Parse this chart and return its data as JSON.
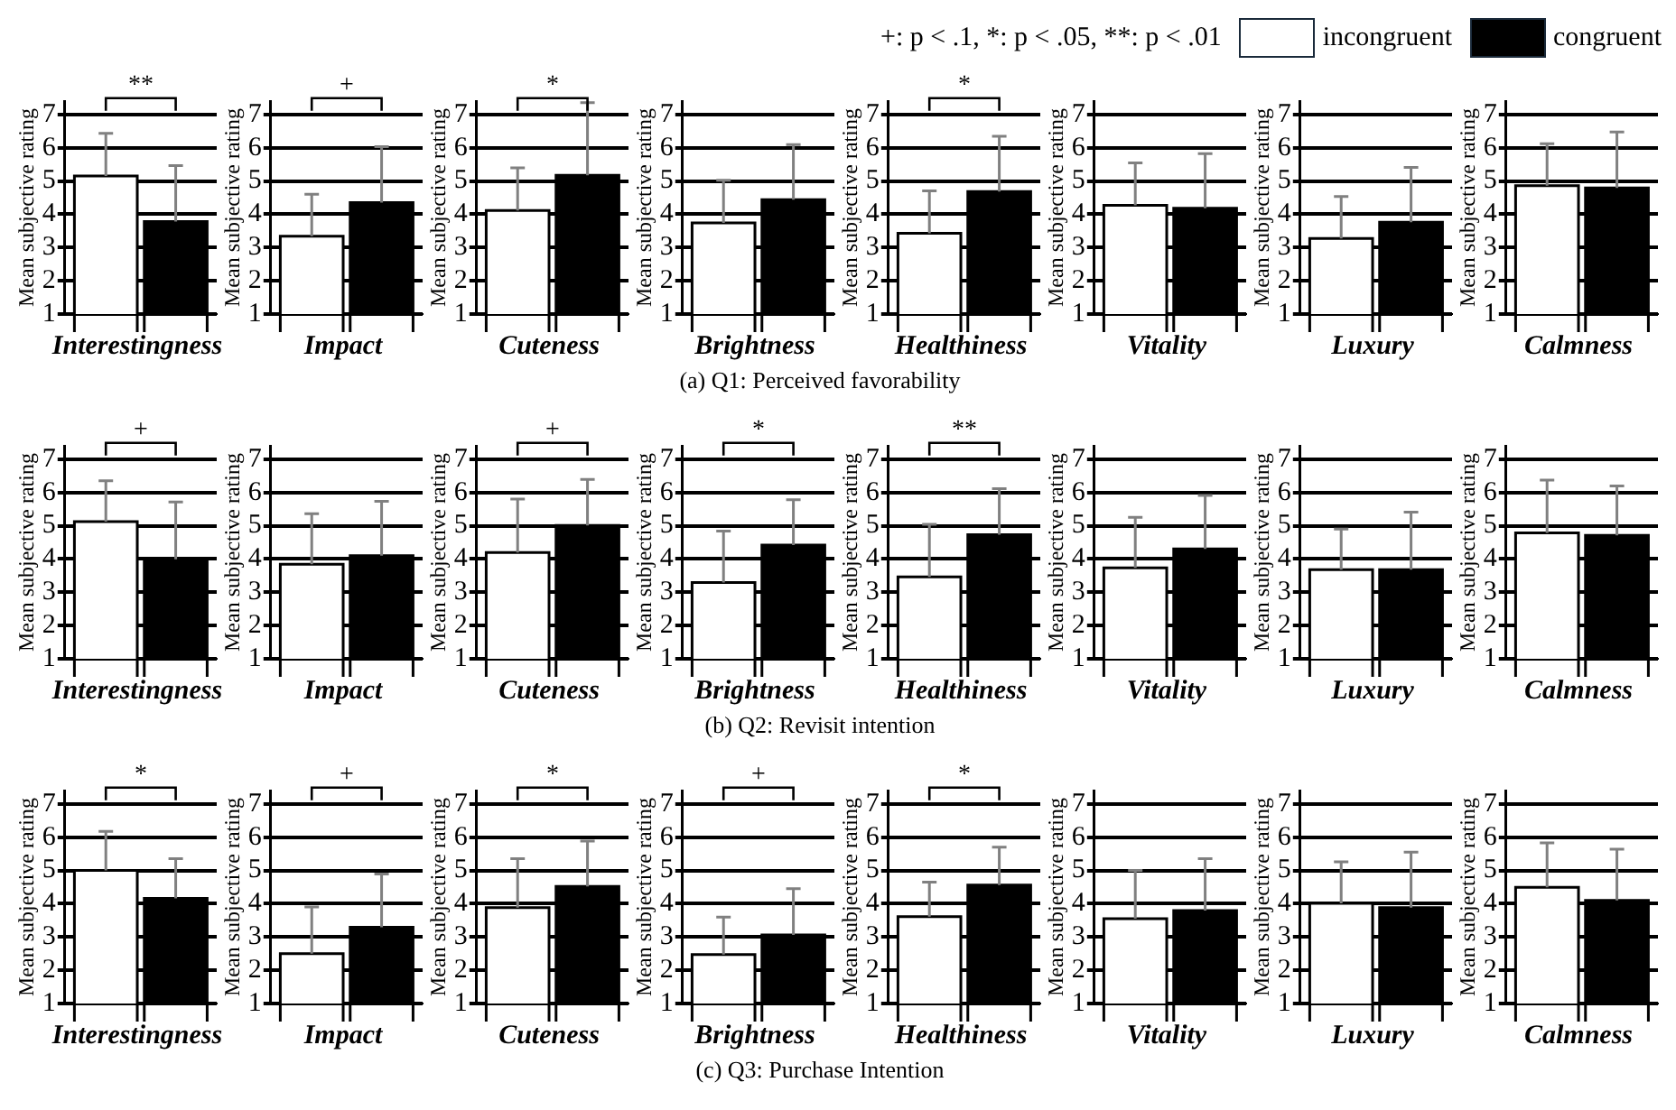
{
  "chart_data": [
    {
      "type": "bar",
      "legend": "top right",
      "legend_title": "+: p < .1, *: p < .05, **: p < .01",
      "xlabel": "Interestingness",
      "ylabel": "Mean subjective rating",
      "categories": [
        null
      ],
      "ylim": [
        1,
        7.4
      ],
      "yticks": [
        1,
        2,
        3,
        4,
        5,
        6,
        7
      ],
      "grid": "y",
      "annotations": [
        "**"
      ],
      "series": [
        {
          "name": "incongruent",
          "color": "#ffffff",
          "values": [
            5.15
          ],
          "errors": [
            [
              5.15,
              6.43
            ]
          ]
        },
        {
          "name": "congruent",
          "color": "#000000",
          "values": [
            3.78
          ],
          "errors": [
            [
              3.78,
              5.46
            ]
          ]
        }
      ]
    },
    {
      "type": "bar",
      "xlabel": "Impact",
      "ylabel": "Mean subjective rating",
      "categories": [
        null
      ],
      "ylim": [
        1,
        7.4
      ],
      "yticks": [
        1,
        2,
        3,
        4,
        5,
        6,
        7
      ],
      "grid": "y",
      "annotations": [
        "+"
      ],
      "series": [
        {
          "color": "#ffffff",
          "values": [
            3.34
          ],
          "errors": [
            [
              3.34,
              4.6
            ]
          ]
        },
        {
          "color": "#000000",
          "values": [
            4.35
          ],
          "errors": [
            [
              4.35,
              6.03
            ]
          ]
        }
      ]
    },
    {
      "type": "bar",
      "xlabel": "Cuteness",
      "ylabel": "Mean subjective rating",
      "categories": [
        null
      ],
      "ylim": [
        1,
        7.4
      ],
      "yticks": [
        1,
        2,
        3,
        4,
        5,
        6,
        7
      ],
      "grid": "y",
      "annotations": [
        "*"
      ],
      "series": [
        {
          "color": "#ffffff",
          "values": [
            4.11
          ],
          "errors": [
            [
              4.11,
              5.39
            ]
          ]
        },
        {
          "color": "#000000",
          "values": [
            5.17
          ],
          "errors": [
            [
              5.17,
              7.35
            ]
          ]
        }
      ]
    },
    {
      "type": "bar",
      "title": "(a) Q1: Perceived favorability",
      "xlabel": "Brightness",
      "ylabel": "Mean subjective rating",
      "categories": [
        null
      ],
      "ylim": [
        1,
        7.4
      ],
      "yticks": [
        1,
        2,
        3,
        4,
        5,
        6,
        7
      ],
      "grid": "y",
      "series": [
        {
          "color": "#ffffff",
          "values": [
            3.74
          ],
          "errors": [
            [
              3.74,
              5.02
            ]
          ]
        },
        {
          "color": "#000000",
          "values": [
            4.44
          ],
          "errors": [
            [
              4.44,
              6.09
            ]
          ]
        }
      ]
    },
    {
      "type": "bar",
      "xlabel": "Healthiness",
      "ylabel": "Mean subjective rating",
      "categories": [
        null
      ],
      "ylim": [
        1,
        7.4
      ],
      "yticks": [
        1,
        2,
        3,
        4,
        5,
        6,
        7
      ],
      "grid": "y",
      "annotations": [
        "*"
      ],
      "series": [
        {
          "color": "#ffffff",
          "values": [
            3.43
          ],
          "errors": [
            [
              3.43,
              4.7
            ]
          ]
        },
        {
          "color": "#000000",
          "values": [
            4.68
          ],
          "errors": [
            [
              4.68,
              6.34
            ]
          ]
        }
      ]
    },
    {
      "type": "bar",
      "xlabel": "Vitality",
      "ylabel": "Mean subjective rating",
      "categories": [
        null
      ],
      "ylim": [
        1,
        7.4
      ],
      "yticks": [
        1,
        2,
        3,
        4,
        5,
        6,
        7
      ],
      "grid": "y",
      "series": [
        {
          "color": "#ffffff",
          "values": [
            4.27
          ],
          "errors": [
            [
              4.27,
              5.54
            ]
          ]
        },
        {
          "color": "#000000",
          "values": [
            4.18
          ],
          "errors": [
            [
              4.18,
              5.82
            ]
          ]
        }
      ]
    },
    {
      "type": "bar",
      "xlabel": "Luxury",
      "ylabel": "Mean subjective rating",
      "categories": [
        null
      ],
      "ylim": [
        1,
        7.4
      ],
      "yticks": [
        1,
        2,
        3,
        4,
        5,
        6,
        7
      ],
      "grid": "y",
      "series": [
        {
          "color": "#ffffff",
          "values": [
            3.27
          ],
          "errors": [
            [
              3.27,
              4.53
            ]
          ]
        },
        {
          "color": "#000000",
          "values": [
            3.76
          ],
          "errors": [
            [
              3.76,
              5.41
            ]
          ]
        }
      ]
    },
    {
      "type": "bar",
      "xlabel": "Calmness",
      "ylabel": "Mean subjective rating",
      "categories": [
        null
      ],
      "ylim": [
        1,
        7.4
      ],
      "yticks": [
        1,
        2,
        3,
        4,
        5,
        6,
        7
      ],
      "grid": "y",
      "series": [
        {
          "color": "#ffffff",
          "values": [
            4.86
          ],
          "errors": [
            [
              4.86,
              6.12
            ]
          ]
        },
        {
          "color": "#000000",
          "values": [
            4.79
          ],
          "errors": [
            [
              4.79,
              6.47
            ]
          ]
        }
      ]
    },
    {
      "type": "bar",
      "xlabel": "Interestingness",
      "ylabel": "Mean subjective rating",
      "categories": [
        null
      ],
      "ylim": [
        1,
        7.4
      ],
      "yticks": [
        1,
        2,
        3,
        4,
        5,
        6,
        7
      ],
      "grid": "y",
      "annotations": [
        "+"
      ],
      "series": [
        {
          "color": "#ffffff",
          "values": [
            5.12
          ],
          "errors": [
            [
              5.12,
              6.35
            ]
          ]
        },
        {
          "color": "#000000",
          "values": [
            3.99
          ],
          "errors": [
            [
              3.99,
              5.71
            ]
          ]
        }
      ]
    },
    {
      "type": "bar",
      "xlabel": "Impact",
      "ylabel": "Mean subjective rating",
      "categories": [
        null
      ],
      "ylim": [
        1,
        7.4
      ],
      "yticks": [
        1,
        2,
        3,
        4,
        5,
        6,
        7
      ],
      "grid": "y",
      "series": [
        {
          "color": "#ffffff",
          "values": [
            3.84
          ],
          "errors": [
            [
              3.84,
              5.36
            ]
          ]
        },
        {
          "color": "#000000",
          "values": [
            4.1
          ],
          "errors": [
            [
              4.1,
              5.73
            ]
          ]
        }
      ]
    },
    {
      "type": "bar",
      "xlabel": "Cuteness",
      "ylabel": "Mean subjective rating",
      "categories": [
        null
      ],
      "ylim": [
        1,
        7.4
      ],
      "yticks": [
        1,
        2,
        3,
        4,
        5,
        6,
        7
      ],
      "grid": "y",
      "annotations": [
        "+"
      ],
      "series": [
        {
          "color": "#ffffff",
          "values": [
            4.19
          ],
          "errors": [
            [
              4.19,
              5.8
            ]
          ]
        },
        {
          "color": "#000000",
          "values": [
            5.01
          ],
          "errors": [
            [
              5.01,
              6.39
            ]
          ]
        }
      ]
    },
    {
      "type": "bar",
      "title": "(b) Q2: Revisit intention",
      "xlabel": "Brightness",
      "ylabel": "Mean subjective rating",
      "categories": [
        null
      ],
      "ylim": [
        1,
        7.4
      ],
      "yticks": [
        1,
        2,
        3,
        4,
        5,
        6,
        7
      ],
      "grid": "y",
      "annotations": [
        "*"
      ],
      "series": [
        {
          "color": "#ffffff",
          "values": [
            3.29
          ],
          "errors": [
            [
              3.29,
              4.84
            ]
          ]
        },
        {
          "color": "#000000",
          "values": [
            4.42
          ],
          "errors": [
            [
              4.42,
              5.78
            ]
          ]
        }
      ]
    },
    {
      "type": "bar",
      "xlabel": "Healthiness",
      "ylabel": "Mean subjective rating",
      "categories": [
        null
      ],
      "ylim": [
        1,
        7.4
      ],
      "yticks": [
        1,
        2,
        3,
        4,
        5,
        6,
        7
      ],
      "grid": "y",
      "annotations": [
        "**"
      ],
      "series": [
        {
          "color": "#ffffff",
          "values": [
            3.46
          ],
          "errors": [
            [
              3.46,
              5.04
            ]
          ]
        },
        {
          "color": "#000000",
          "values": [
            4.73
          ],
          "errors": [
            [
              4.73,
              6.11
            ]
          ]
        }
      ]
    },
    {
      "type": "bar",
      "xlabel": "Vitality",
      "ylabel": "Mean subjective rating",
      "categories": [
        null
      ],
      "ylim": [
        1,
        7.4
      ],
      "yticks": [
        1,
        2,
        3,
        4,
        5,
        6,
        7
      ],
      "grid": "y",
      "series": [
        {
          "color": "#ffffff",
          "values": [
            3.73
          ],
          "errors": [
            [
              3.73,
              5.25
            ]
          ]
        },
        {
          "color": "#000000",
          "values": [
            4.3
          ],
          "errors": [
            [
              4.3,
              5.91
            ]
          ]
        }
      ]
    },
    {
      "type": "bar",
      "xlabel": "Luxury",
      "ylabel": "Mean subjective rating",
      "categories": [
        null
      ],
      "ylim": [
        1,
        7.4
      ],
      "yticks": [
        1,
        2,
        3,
        4,
        5,
        6,
        7
      ],
      "grid": "y",
      "series": [
        {
          "color": "#ffffff",
          "values": [
            3.68
          ],
          "errors": [
            [
              3.68,
              4.9
            ]
          ]
        },
        {
          "color": "#000000",
          "values": [
            3.68
          ],
          "errors": [
            [
              3.68,
              5.41
            ]
          ]
        }
      ]
    },
    {
      "type": "bar",
      "xlabel": "Calmness",
      "ylabel": "Mean subjective rating",
      "categories": [
        null
      ],
      "ylim": [
        1,
        7.4
      ],
      "yticks": [
        1,
        2,
        3,
        4,
        5,
        6,
        7
      ],
      "grid": "y",
      "series": [
        {
          "color": "#ffffff",
          "values": [
            4.78
          ],
          "errors": [
            [
              4.78,
              6.37
            ]
          ]
        },
        {
          "color": "#000000",
          "values": [
            4.71
          ],
          "errors": [
            [
              4.71,
              6.19
            ]
          ]
        }
      ]
    },
    {
      "type": "bar",
      "xlabel": "Interestingness",
      "ylabel": "Mean subjective rating",
      "categories": [
        null
      ],
      "ylim": [
        1,
        7.4
      ],
      "yticks": [
        1,
        2,
        3,
        4,
        5,
        6,
        7
      ],
      "grid": "y",
      "annotations": [
        "*"
      ],
      "series": [
        {
          "color": "#ffffff",
          "values": [
            5.0
          ],
          "errors": [
            [
              5.0,
              6.17
            ]
          ]
        },
        {
          "color": "#000000",
          "values": [
            4.16
          ],
          "errors": [
            [
              4.16,
              5.35
            ]
          ]
        }
      ]
    },
    {
      "type": "bar",
      "xlabel": "Impact",
      "ylabel": "Mean subjective rating",
      "categories": [
        null
      ],
      "ylim": [
        1,
        7.4
      ],
      "yticks": [
        1,
        2,
        3,
        4,
        5,
        6,
        7
      ],
      "grid": "y",
      "annotations": [
        "+"
      ],
      "series": [
        {
          "color": "#ffffff",
          "values": [
            2.5
          ],
          "errors": [
            [
              2.5,
              3.9
            ]
          ]
        },
        {
          "color": "#000000",
          "values": [
            3.29
          ],
          "errors": [
            [
              3.29,
              4.89
            ]
          ]
        }
      ]
    },
    {
      "type": "bar",
      "xlabel": "Cuteness",
      "ylabel": "Mean subjective rating",
      "categories": [
        null
      ],
      "ylim": [
        1,
        7.4
      ],
      "yticks": [
        1,
        2,
        3,
        4,
        5,
        6,
        7
      ],
      "grid": "y",
      "annotations": [
        "*"
      ],
      "series": [
        {
          "color": "#ffffff",
          "values": [
            3.88
          ],
          "errors": [
            [
              3.88,
              5.35
            ]
          ]
        },
        {
          "color": "#000000",
          "values": [
            4.52
          ],
          "errors": [
            [
              4.52,
              5.88
            ]
          ]
        }
      ]
    },
    {
      "type": "bar",
      "title": "(c) Q3: Purchase Intention",
      "xlabel": "Brightness",
      "ylabel": "Mean subjective rating",
      "categories": [
        null
      ],
      "ylim": [
        1,
        7.4
      ],
      "yticks": [
        1,
        2,
        3,
        4,
        5,
        6,
        7
      ],
      "grid": "y",
      "annotations": [
        "+"
      ],
      "series": [
        {
          "color": "#ffffff",
          "values": [
            2.47
          ],
          "errors": [
            [
              2.47,
              3.6
            ]
          ]
        },
        {
          "color": "#000000",
          "values": [
            3.06
          ],
          "errors": [
            [
              3.06,
              4.45
            ]
          ]
        }
      ]
    },
    {
      "type": "bar",
      "xlabel": "Healthiness",
      "ylabel": "Mean subjective rating",
      "categories": [
        null
      ],
      "ylim": [
        1,
        7.4
      ],
      "yticks": [
        1,
        2,
        3,
        4,
        5,
        6,
        7
      ],
      "grid": "y",
      "annotations": [
        "*"
      ],
      "series": [
        {
          "color": "#ffffff",
          "values": [
            3.61
          ],
          "errors": [
            [
              3.61,
              4.65
            ]
          ]
        },
        {
          "color": "#000000",
          "values": [
            4.56
          ],
          "errors": [
            [
              4.56,
              5.7
            ]
          ]
        }
      ]
    },
    {
      "type": "bar",
      "xlabel": "Vitality",
      "ylabel": "Mean subjective rating",
      "categories": [
        null
      ],
      "ylim": [
        1,
        7.4
      ],
      "yticks": [
        1,
        2,
        3,
        4,
        5,
        6,
        7
      ],
      "grid": "y",
      "series": [
        {
          "color": "#ffffff",
          "values": [
            3.55
          ],
          "errors": [
            [
              3.55,
              5.0
            ]
          ]
        },
        {
          "color": "#000000",
          "values": [
            3.79
          ],
          "errors": [
            [
              3.79,
              5.35
            ]
          ]
        }
      ]
    },
    {
      "type": "bar",
      "xlabel": "Luxury",
      "ylabel": "Mean subjective rating",
      "categories": [
        null
      ],
      "ylim": [
        1,
        7.4
      ],
      "yticks": [
        1,
        2,
        3,
        4,
        5,
        6,
        7
      ],
      "grid": "y",
      "series": [
        {
          "color": "#ffffff",
          "values": [
            4.01
          ],
          "errors": [
            [
              4.01,
              5.26
            ]
          ]
        },
        {
          "color": "#000000",
          "values": [
            3.88
          ],
          "errors": [
            [
              3.88,
              5.55
            ]
          ]
        }
      ]
    },
    {
      "type": "bar",
      "xlabel": "Calmness",
      "ylabel": "Mean subjective rating",
      "categories": [
        null
      ],
      "ylim": [
        1,
        7.4
      ],
      "yticks": [
        1,
        2,
        3,
        4,
        5,
        6,
        7
      ],
      "grid": "y",
      "series": [
        {
          "color": "#ffffff",
          "values": [
            4.49
          ],
          "errors": [
            [
              4.49,
              5.83
            ]
          ]
        },
        {
          "color": "#000000",
          "values": [
            4.1
          ],
          "errors": [
            [
              4.1,
              5.64
            ]
          ]
        }
      ]
    }
  ]
}
